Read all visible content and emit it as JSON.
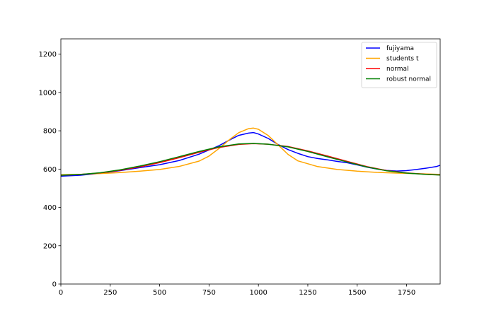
{
  "chart_data": {
    "type": "line",
    "title": "",
    "xlabel": "",
    "ylabel": "",
    "xlim": [
      0,
      1920
    ],
    "ylim": [
      0,
      1280
    ],
    "grid": false,
    "legend_position": "top-right",
    "x_ticks": [
      0,
      250,
      500,
      750,
      1000,
      1250,
      1500,
      1750
    ],
    "y_ticks": [
      0,
      200,
      400,
      600,
      800,
      1000,
      1200
    ],
    "series": [
      {
        "name": "fujiyama",
        "color": "#0000ff",
        "x": [
          0,
          100,
          200,
          300,
          400,
          500,
          600,
          700,
          800,
          850,
          900,
          950,
          975,
          1000,
          1050,
          1100,
          1150,
          1200,
          1250,
          1300,
          1350,
          1400,
          1450,
          1500,
          1550,
          1600,
          1650,
          1700,
          1750,
          1800,
          1850,
          1900,
          1920
        ],
        "y": [
          563,
          568,
          578,
          592,
          608,
          623,
          645,
          678,
          722,
          750,
          776,
          788,
          791,
          783,
          760,
          728,
          702,
          682,
          665,
          655,
          648,
          640,
          633,
          622,
          610,
          600,
          593,
          590,
          592,
          598,
          605,
          613,
          620
        ]
      },
      {
        "name": "students t",
        "color": "#ffa500",
        "x": [
          0,
          100,
          200,
          300,
          400,
          500,
          600,
          700,
          750,
          800,
          850,
          900,
          950,
          975,
          1000,
          1050,
          1100,
          1150,
          1200,
          1300,
          1400,
          1500,
          1600,
          1700,
          1800,
          1920
        ],
        "y": [
          571,
          573,
          577,
          582,
          589,
          598,
          614,
          642,
          668,
          707,
          751,
          790,
          811,
          814,
          808,
          775,
          726,
          677,
          643,
          613,
          598,
          589,
          583,
          579,
          576,
          572
        ]
      },
      {
        "name": "normal",
        "color": "#ff0000",
        "x": [
          0,
          100,
          200,
          300,
          400,
          500,
          600,
          700,
          800,
          900,
          975,
          1050,
          1150,
          1250,
          1350,
          1450,
          1550,
          1650,
          1750,
          1850,
          1920
        ],
        "y": [
          568,
          572,
          580,
          594,
          612,
          634,
          660,
          688,
          713,
          729,
          733,
          730,
          718,
          695,
          668,
          640,
          613,
          592,
          580,
          573,
          570
        ]
      },
      {
        "name": "robust normal",
        "color": "#008000",
        "x": [
          0,
          100,
          200,
          300,
          400,
          500,
          600,
          700,
          800,
          900,
          975,
          1050,
          1150,
          1250,
          1350,
          1450,
          1550,
          1650,
          1750,
          1850,
          1920
        ],
        "y": [
          568,
          572,
          581,
          596,
          616,
          639,
          665,
          692,
          716,
          731,
          734,
          730,
          716,
          692,
          664,
          637,
          611,
          591,
          579,
          572,
          569
        ]
      }
    ]
  }
}
